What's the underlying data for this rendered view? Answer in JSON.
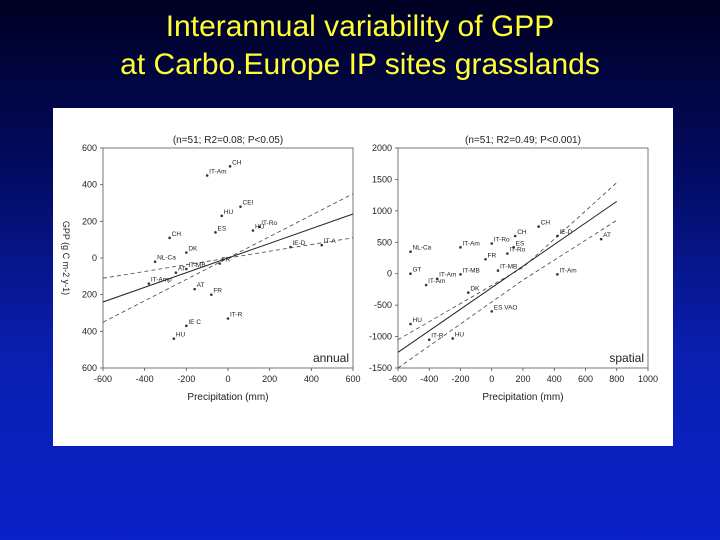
{
  "slide": {
    "title_line1": "Interannual variability of GPP",
    "title_line2": "at Carbo.Europe IP sites grasslands"
  },
  "colors": {
    "title": "#ffff33",
    "background": "#0a1fb0",
    "panel": "#ffffff"
  },
  "chart_data": [
    {
      "type": "scatter",
      "stats": "(n=51; R2=0.08; P<0.05)",
      "corner_label": "annual",
      "ylabel": "GPP (g C m-2 y-1)",
      "xlabel": "Precipitation (mm)",
      "xlim": [
        -600,
        600
      ],
      "ylim": [
        -600,
        600
      ],
      "x_ticks": [
        "-600",
        "-400",
        "-200",
        "0",
        "200",
        "400",
        "600"
      ],
      "y_ticks": [
        "600",
        "400",
        "200",
        "0",
        "200",
        "400",
        "600"
      ],
      "regression": [
        [
          -600,
          -240
        ],
        [
          600,
          240
        ]
      ],
      "ci_upper": [
        [
          -600,
          -110
        ],
        [
          0,
          0
        ],
        [
          600,
          350
        ]
      ],
      "ci_lower": [
        [
          -600,
          -350
        ],
        [
          0,
          0
        ],
        [
          600,
          110
        ]
      ],
      "points": [
        {
          "label": "IT-Am",
          "x": -100,
          "y": 450
        },
        {
          "label": "CH",
          "x": 10,
          "y": 500
        },
        {
          "label": "CEI",
          "x": 60,
          "y": 280
        },
        {
          "label": "HU",
          "x": -30,
          "y": 230
        },
        {
          "label": "CH",
          "x": -280,
          "y": 110
        },
        {
          "label": "ES",
          "x": -60,
          "y": 140
        },
        {
          "label": "HU",
          "x": 120,
          "y": 150
        },
        {
          "label": "IT-Ro",
          "x": 150,
          "y": 170
        },
        {
          "label": "IE-D",
          "x": 300,
          "y": 60
        },
        {
          "label": "IT-A",
          "x": 450,
          "y": 70
        },
        {
          "label": "NL-Ca",
          "x": -350,
          "y": -20
        },
        {
          "label": "DK",
          "x": -200,
          "y": 30
        },
        {
          "label": "AT",
          "x": -250,
          "y": -80
        },
        {
          "label": "IT-MB",
          "x": -200,
          "y": -60
        },
        {
          "label": "FR",
          "x": -40,
          "y": -30
        },
        {
          "label": "IT-Amp",
          "x": -380,
          "y": -140
        },
        {
          "label": "AT",
          "x": -160,
          "y": -170
        },
        {
          "label": "FR",
          "x": -80,
          "y": -200
        },
        {
          "label": "IE C",
          "x": -200,
          "y": -370
        },
        {
          "label": "HU",
          "x": -260,
          "y": -440
        },
        {
          "label": "IT-R",
          "x": 0,
          "y": -330
        }
      ]
    },
    {
      "type": "scatter",
      "stats": "(n=51; R2=0.49; P<0.001)",
      "corner_label": "spatial",
      "ylabel": "",
      "xlabel": "Precipitation (mm)",
      "xlim": [
        -600,
        1000
      ],
      "ylim": [
        -1500,
        2000
      ],
      "x_ticks": [
        "-600",
        "-400",
        "-200",
        "0",
        "200",
        "400",
        "600",
        "800",
        "1000"
      ],
      "y_ticks": [
        "2000",
        "1500",
        "1000",
        "500",
        "0",
        "-500",
        "-1000",
        "-1500"
      ],
      "regression": [
        [
          -600,
          -1250
        ],
        [
          800,
          1150
        ]
      ],
      "ci_upper": [
        [
          -600,
          -1050
        ],
        [
          200,
          100
        ],
        [
          800,
          1450
        ]
      ],
      "ci_lower": [
        [
          -600,
          -1500
        ],
        [
          200,
          -100
        ],
        [
          800,
          850
        ]
      ],
      "points": [
        {
          "label": "CH",
          "x": 300,
          "y": 750
        },
        {
          "label": "CH",
          "x": 150,
          "y": 600
        },
        {
          "label": "IE-D",
          "x": 420,
          "y": 600
        },
        {
          "label": "AT",
          "x": 700,
          "y": 550
        },
        {
          "label": "NL-Ca",
          "x": -520,
          "y": 350
        },
        {
          "label": "IT-Am",
          "x": -200,
          "y": 420
        },
        {
          "label": "IT-Ro",
          "x": 0,
          "y": 480
        },
        {
          "label": "ES",
          "x": 140,
          "y": 420
        },
        {
          "label": "IT-Ro",
          "x": 100,
          "y": 320
        },
        {
          "label": "FR",
          "x": -40,
          "y": 230
        },
        {
          "label": "IT-MB",
          "x": 40,
          "y": 50
        },
        {
          "label": "IT-Am",
          "x": 420,
          "y": -10
        },
        {
          "label": "GT",
          "x": -520,
          "y": 0
        },
        {
          "label": "IT-Am",
          "x": -350,
          "y": -80
        },
        {
          "label": "IT-Am",
          "x": -420,
          "y": -180
        },
        {
          "label": "IT-MB",
          "x": -200,
          "y": -10
        },
        {
          "label": "DK",
          "x": -150,
          "y": -300
        },
        {
          "label": "ES VAO",
          "x": 0,
          "y": -600
        },
        {
          "label": "HU",
          "x": -520,
          "y": -800
        },
        {
          "label": "IT-R",
          "x": -400,
          "y": -1050
        },
        {
          "label": "HU",
          "x": -250,
          "y": -1030
        }
      ]
    }
  ]
}
